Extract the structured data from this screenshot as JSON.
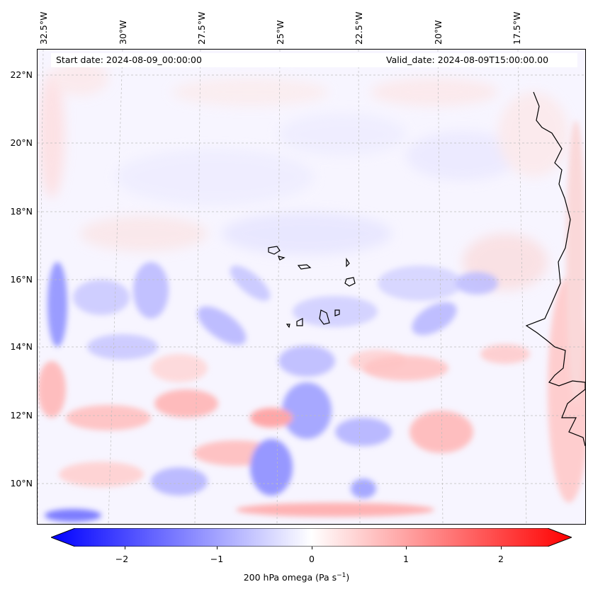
{
  "header": {
    "start_date": "Start date: 2024-08-09_00:00:00",
    "valid_date": "Valid_date: 2024-08-09T15:00:00.00"
  },
  "axes": {
    "lon_labels": [
      "32.5°W",
      "30°W",
      "27.5°W",
      "25°W",
      "22.5°W",
      "20°W",
      "17.5°W"
    ],
    "lat_labels": [
      "22°N",
      "20°N",
      "18°N",
      "16°N",
      "14°N",
      "12°N",
      "10°N"
    ]
  },
  "colorbar": {
    "label": "200 hPa omega (Pa s",
    "label_sup": "−1",
    "label_close": ")",
    "ticks": [
      "−2",
      "−1",
      "0",
      "1",
      "2"
    ],
    "vmin": -2.75,
    "vmax": 2.75,
    "neg_color": "#0000ff",
    "pos_color": "#ff0000",
    "mid_color": "#ffffff"
  },
  "chart_data": {
    "type": "heatmap",
    "title": "",
    "variable": "200 hPa omega (Pa s^-1)",
    "lon_range": [
      "32.5°W",
      "16°W"
    ],
    "lat_range": [
      "9°N",
      "22.7°N"
    ],
    "colormap": "bwr",
    "gridlines": true,
    "features": [
      "Cape Verde islands",
      "West African coastline (Mauritania, Senegal, Gambia, Guinea-Bissau)"
    ]
  }
}
